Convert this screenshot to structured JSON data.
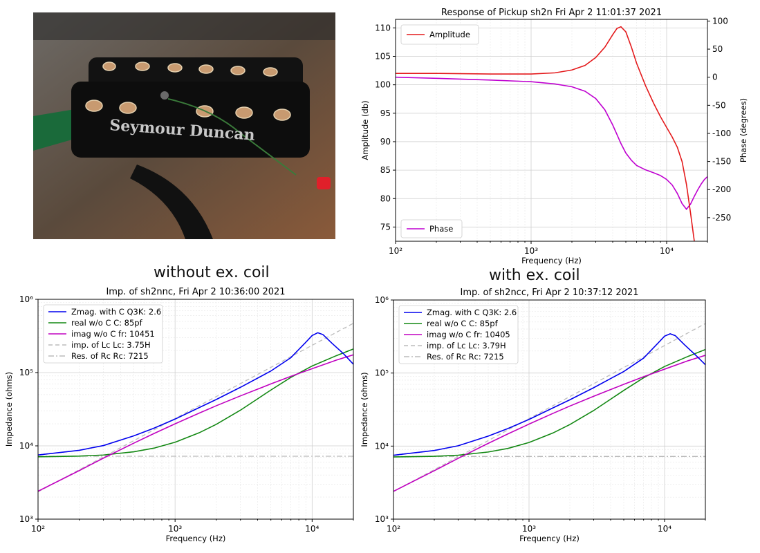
{
  "photo": {
    "brand_text": "Seymour Duncan"
  },
  "captions": {
    "left": "without ex. coil",
    "right": "with ex. coil"
  },
  "chart_data": [
    {
      "id": "response",
      "type": "line",
      "title": "Response of Pickup sh2n Fri Apr  2 11:01:37 2021",
      "xlabel": "Frequency (Hz)",
      "ylabel": "Amplitude (db)",
      "y2label": "Phase (degrees)",
      "xscale": "log",
      "xlim": [
        100,
        20000
      ],
      "ylim": [
        72.5,
        111.5
      ],
      "y2lim": [
        -292,
        103
      ],
      "xticks": [
        "10²",
        "10³",
        "10⁴"
      ],
      "yticks": [
        75,
        80,
        85,
        90,
        95,
        100,
        105,
        110
      ],
      "y2ticks": [
        100,
        50,
        0,
        -50,
        -100,
        -150,
        -200,
        -250
      ],
      "grid": true,
      "series": [
        {
          "name": "Amplitude",
          "axis": "left",
          "color": "#e41a1c",
          "legend": "top-left",
          "x": [
            100,
            200,
            500,
            1000,
            1500,
            2000,
            2500,
            3000,
            3500,
            4000,
            4300,
            4600,
            5000,
            5500,
            6000,
            7000,
            8000,
            9000,
            10000,
            11000,
            12000,
            13000,
            14000,
            15000,
            16000
          ],
          "y": [
            102.0,
            102.0,
            101.9,
            101.9,
            102.1,
            102.6,
            103.4,
            104.8,
            106.6,
            108.8,
            109.9,
            110.2,
            109.3,
            106.6,
            103.8,
            99.8,
            96.8,
            94.4,
            92.5,
            90.8,
            89.0,
            86.5,
            82.5,
            77.5,
            72.5
          ]
        },
        {
          "name": "Phase",
          "axis": "right",
          "color": "#bf00d0",
          "legend": "bottom-left",
          "x": [
            100,
            200,
            500,
            1000,
            1500,
            2000,
            2500,
            3000,
            3500,
            4000,
            4300,
            4600,
            5000,
            5500,
            6000,
            7000,
            8000,
            9000,
            10000,
            11000,
            12000,
            13000,
            14000,
            15000,
            16000,
            17000,
            18000,
            19000,
            20000
          ],
          "y": [
            0,
            -2,
            -5,
            -8,
            -12,
            -17,
            -25,
            -38,
            -58,
            -85,
            -102,
            -118,
            -135,
            -148,
            -157,
            -165,
            -170,
            -175,
            -182,
            -192,
            -207,
            -225,
            -235,
            -226,
            -212,
            -200,
            -190,
            -182,
            -177
          ]
        }
      ]
    },
    {
      "id": "imp_without",
      "type": "line",
      "title": "Imp. of sh2nnc, Fri Apr  2 10:36:00 2021",
      "xlabel": "Frequency (Hz)",
      "ylabel": "Impedance (ohms)",
      "xscale": "log",
      "yscale": "log",
      "xlim": [
        100,
        20000
      ],
      "ylim": [
        1000,
        1000000
      ],
      "xticks": [
        "10²",
        "10³",
        "10⁴"
      ],
      "yticks": [
        "10³",
        "10⁴",
        "10⁵",
        "10⁶"
      ],
      "grid": true,
      "legend": "top-left",
      "series": [
        {
          "name": "Zmag. with C Q3K: 2.6",
          "color": "#0000ee",
          "style": "solid",
          "x": [
            100,
            200,
            300,
            500,
            700,
            1000,
            1500,
            2000,
            3000,
            5000,
            7000,
            9000,
            10000,
            11000,
            12000,
            14000,
            17000,
            20000
          ],
          "y": [
            7500,
            8700,
            10100,
            13700,
            17400,
            23200,
            33300,
            43000,
            63000,
            105000,
            160000,
            260000,
            320000,
            350000,
            330000,
            250000,
            180000,
            130000
          ]
        },
        {
          "name": "real w/o C   C: 85pf",
          "color": "#138813",
          "style": "solid",
          "x": [
            100,
            200,
            300,
            500,
            700,
            1000,
            1500,
            2000,
            3000,
            5000,
            7000,
            10000,
            15000,
            20000
          ],
          "y": [
            7100,
            7250,
            7500,
            8300,
            9300,
            11200,
            15100,
            19700,
            30700,
            57800,
            86000,
            123000,
            170000,
            210000
          ]
        },
        {
          "name": "imag w/o C fr: 10451",
          "color": "#c000c0",
          "style": "solid",
          "x": [
            100,
            200,
            300,
            500,
            700,
            1000,
            1500,
            2000,
            3000,
            5000,
            7000,
            10000,
            15000,
            20000
          ],
          "y": [
            2400,
            4600,
            6800,
            10900,
            14700,
            20000,
            28000,
            35300,
            48100,
            70000,
            89000,
            113000,
            148000,
            175000
          ]
        },
        {
          "name": "imp. of Lc  Lc: 3.75H",
          "color": "#bbbbbb",
          "style": "dashed",
          "x": [
            100,
            20000
          ],
          "y": [
            2360,
            471000
          ]
        },
        {
          "name": "Res. of Rc Rc: 7215",
          "color": "#bbbbbb",
          "style": "dashdot",
          "x": [
            100,
            20000
          ],
          "y": [
            7215,
            7215
          ]
        }
      ]
    },
    {
      "id": "imp_with",
      "type": "line",
      "title": "Imp. of sh2ncc, Fri Apr  2 10:37:12 2021",
      "xlabel": "Frequency (Hz)",
      "ylabel": "Impedance (ohms)",
      "xscale": "log",
      "yscale": "log",
      "xlim": [
        100,
        20000
      ],
      "ylim": [
        1000,
        1000000
      ],
      "xticks": [
        "10²",
        "10³",
        "10⁴"
      ],
      "yticks": [
        "10³",
        "10⁴",
        "10⁵",
        "10⁶"
      ],
      "grid": true,
      "legend": "top-left",
      "series": [
        {
          "name": "Zmag. with C Q3K: 2.6",
          "color": "#0000ee",
          "style": "solid",
          "x": [
            100,
            200,
            300,
            500,
            700,
            1000,
            1500,
            2000,
            3000,
            5000,
            7000,
            9000,
            10000,
            11000,
            12000,
            14000,
            17000,
            20000
          ],
          "y": [
            7500,
            8700,
            10100,
            13700,
            17400,
            23200,
            33300,
            43000,
            63000,
            105000,
            160000,
            260000,
            320000,
            345000,
            325000,
            245000,
            175000,
            130000
          ]
        },
        {
          "name": "real w/o C   C: 85pf",
          "color": "#138813",
          "style": "solid",
          "x": [
            100,
            200,
            300,
            500,
            700,
            1000,
            1500,
            2000,
            3000,
            5000,
            7000,
            10000,
            15000,
            20000
          ],
          "y": [
            7100,
            7250,
            7500,
            8300,
            9300,
            11200,
            15100,
            19700,
            30700,
            57800,
            86000,
            123000,
            170000,
            210000
          ]
        },
        {
          "name": "imag w/o C fr: 10405",
          "color": "#c000c0",
          "style": "solid",
          "x": [
            100,
            200,
            300,
            500,
            700,
            1000,
            1500,
            2000,
            3000,
            5000,
            7000,
            10000,
            15000,
            20000
          ],
          "y": [
            2400,
            4600,
            6800,
            10900,
            14700,
            20000,
            28000,
            35300,
            48100,
            70000,
            89000,
            113000,
            148000,
            175000
          ]
        },
        {
          "name": "imp. of Lc  Lc: 3.79H",
          "color": "#bbbbbb",
          "style": "dashed",
          "x": [
            100,
            20000
          ],
          "y": [
            2380,
            476000
          ]
        },
        {
          "name": "Res. of Rc Rc: 7215",
          "color": "#bbbbbb",
          "style": "dashdot",
          "x": [
            100,
            20000
          ],
          "y": [
            7215,
            7215
          ]
        }
      ]
    }
  ]
}
